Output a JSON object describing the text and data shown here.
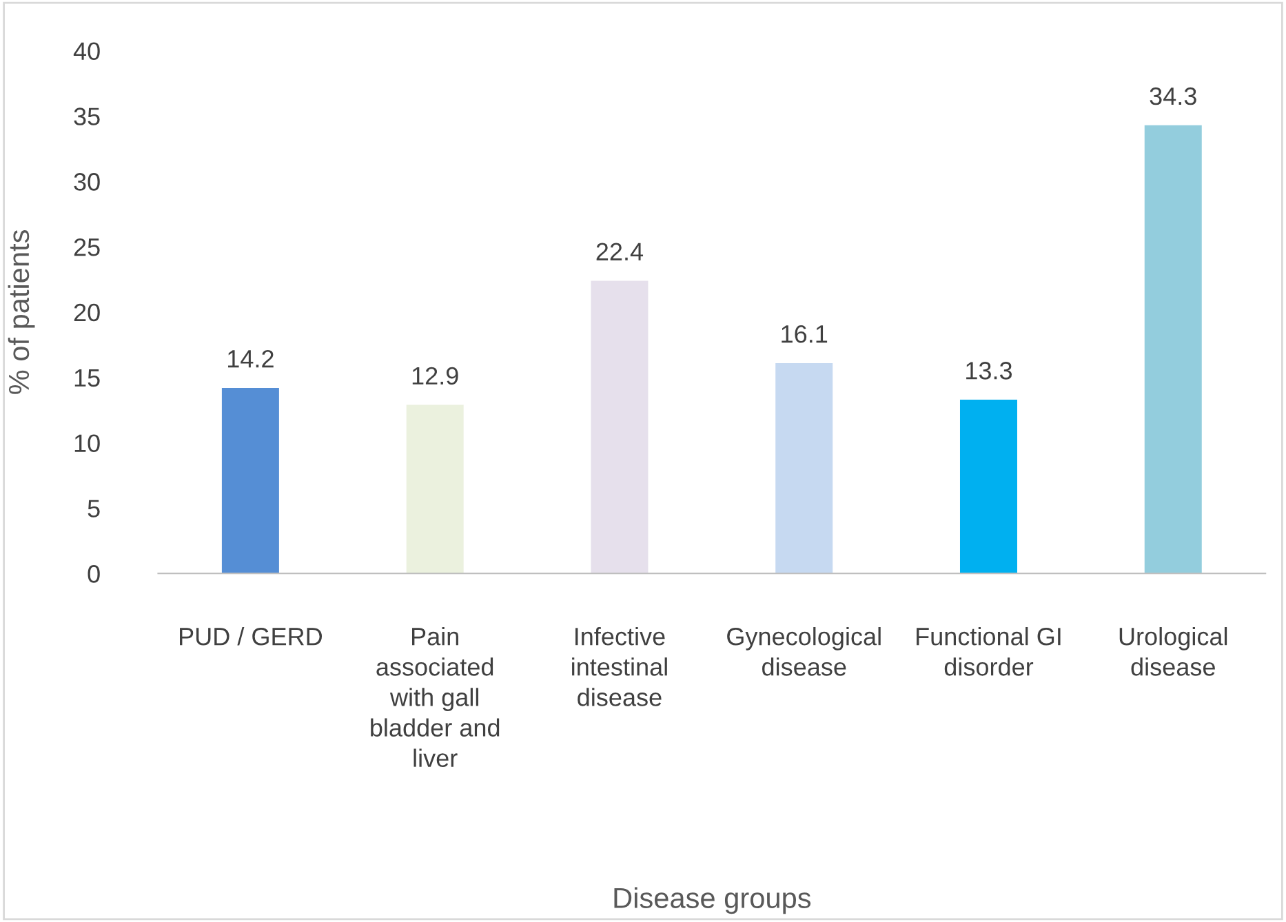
{
  "chart_data": {
    "type": "bar",
    "xlabel": "Disease groups",
    "ylabel": "% of patients",
    "categories": [
      "PUD / GERD",
      "Pain\nassociated\nwith gall\nbladder and\nliver",
      "Infective\nintestinal\ndisease",
      "Gynecological\ndisease",
      "Functional GI\ndisorder",
      "Urological\ndisease"
    ],
    "values": [
      14.2,
      12.9,
      22.4,
      16.1,
      13.3,
      34.3
    ],
    "colors": [
      "#558ed5",
      "#ebf1de",
      "#e6e0ec",
      "#c6d9f1",
      "#00b0f0",
      "#93cddd"
    ],
    "ylim": [
      0,
      40
    ],
    "yticks": [
      0,
      5,
      10,
      15,
      20,
      25,
      30,
      35,
      40
    ],
    "data_labels": true,
    "grid": false
  }
}
